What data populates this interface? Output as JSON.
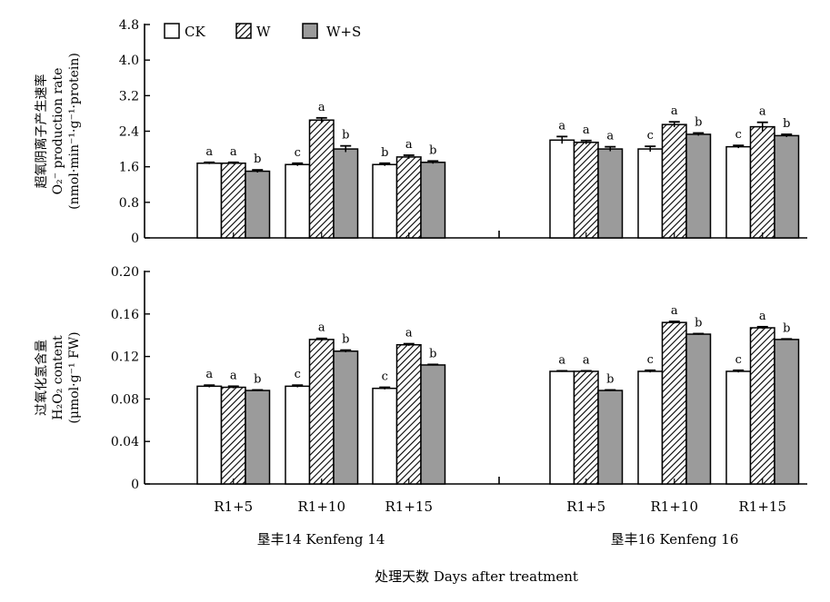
{
  "colors": {
    "CK": "#ffffff",
    "W": "hatch",
    "WS": "#9b9b9b",
    "axis": "#000000"
  },
  "legend": [
    "CK",
    "W",
    "W+S"
  ],
  "cultivars": [
    "垦丰14 Kenfeng 14",
    "垦丰16 Kenfeng 16"
  ],
  "xlabel": "处理天数 Days after treatment",
  "chart_data": [
    {
      "type": "bar",
      "ylabel_lines": [
        "超氧阴离子产生速率",
        "O₂⁻ production rate",
        "(nmol·min⁻¹·g⁻¹·protein)"
      ],
      "ylim": [
        0,
        4.8
      ],
      "yticks": [
        "0",
        "0.8",
        "1.6",
        "2.4",
        "3.2",
        "4.0",
        "4.8"
      ],
      "categories": [
        "R1+5",
        "R1+10",
        "R1+15",
        "R1+5",
        "R1+10",
        "R1+15"
      ],
      "series": [
        {
          "name": "CK",
          "values": [
            1.68,
            1.65,
            1.65,
            2.2,
            2.0,
            2.05
          ],
          "errors": [
            0.02,
            0.03,
            0.03,
            0.08,
            0.06,
            0.03
          ],
          "letters": [
            "a",
            "c",
            "b",
            "a",
            "c",
            "c"
          ]
        },
        {
          "name": "W",
          "values": [
            1.68,
            2.65,
            1.82,
            2.15,
            2.55,
            2.5
          ],
          "errors": [
            0.02,
            0.05,
            0.04,
            0.04,
            0.06,
            0.1
          ],
          "letters": [
            "a",
            "a",
            "a",
            "a",
            "a",
            "a"
          ]
        },
        {
          "name": "W+S",
          "values": [
            1.5,
            2.0,
            1.7,
            2.0,
            2.33,
            2.3
          ],
          "errors": [
            0.03,
            0.07,
            0.03,
            0.05,
            0.03,
            0.03
          ],
          "letters": [
            "b",
            "b",
            "b",
            "a",
            "b",
            "b"
          ]
        }
      ]
    },
    {
      "type": "bar",
      "ylabel_lines": [
        "过氧化氢含量",
        "H₂O₂ content",
        "(μmol·g⁻¹ FW)"
      ],
      "ylim": [
        0,
        0.2
      ],
      "yticks": [
        "0",
        "0.04",
        "0.08",
        "0.12",
        "0.16",
        "0.20"
      ],
      "categories": [
        "R1+5",
        "R1+10",
        "R1+15",
        "R1+5",
        "R1+10",
        "R1+15"
      ],
      "series": [
        {
          "name": "CK",
          "values": [
            0.092,
            0.092,
            0.09,
            0.106,
            0.106,
            0.106
          ],
          "errors": [
            0.001,
            0.001,
            0.001,
            0.0005,
            0.001,
            0.001
          ],
          "letters": [
            "a",
            "c",
            "c",
            "a",
            "c",
            "c"
          ]
        },
        {
          "name": "W",
          "values": [
            0.091,
            0.136,
            0.131,
            0.106,
            0.152,
            0.147
          ],
          "errors": [
            0.001,
            0.001,
            0.001,
            0.0005,
            0.001,
            0.001
          ],
          "letters": [
            "a",
            "a",
            "a",
            "a",
            "a",
            "a"
          ]
        },
        {
          "name": "W+S",
          "values": [
            0.088,
            0.125,
            0.112,
            0.088,
            0.141,
            0.136
          ],
          "errors": [
            0.0005,
            0.001,
            0.0005,
            0.0005,
            0.0005,
            0.0005
          ],
          "letters": [
            "b",
            "b",
            "b",
            "b",
            "b",
            "b"
          ]
        }
      ]
    }
  ]
}
